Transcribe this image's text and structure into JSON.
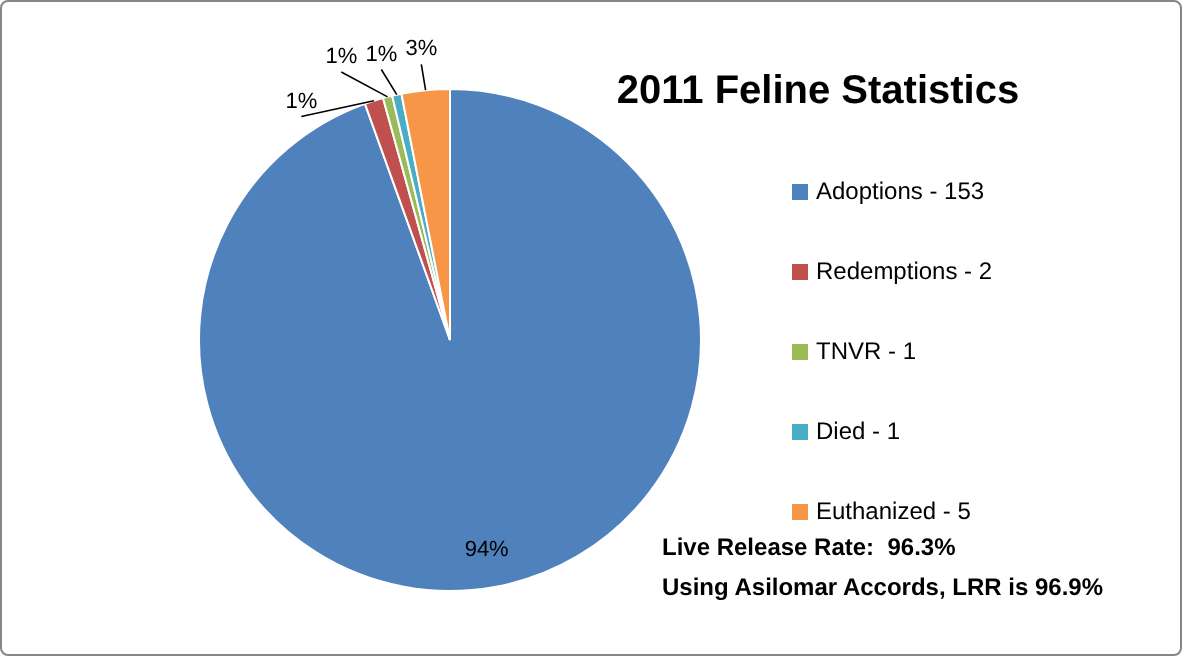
{
  "chart_data": {
    "type": "pie",
    "title": "2011 Feline Statistics",
    "categories": [
      "Adoptions - 153",
      "Redemptions - 2",
      "TNVR - 1",
      "Died - 1",
      "Euthanized - 5"
    ],
    "values": [
      94.5,
      1.2,
      0.6,
      0.6,
      3.1
    ],
    "value_labels": [
      "94%",
      "1%",
      "1%",
      "1%",
      "3%"
    ],
    "colors": [
      "#4f81bd",
      "#c0504d",
      "#9bbb59",
      "#4bacc6",
      "#f79646"
    ],
    "legend": "right",
    "annotations": [
      "Live Release Rate:  96.3%",
      "Using Asilomar Accords, LRR is 96.9%"
    ]
  }
}
